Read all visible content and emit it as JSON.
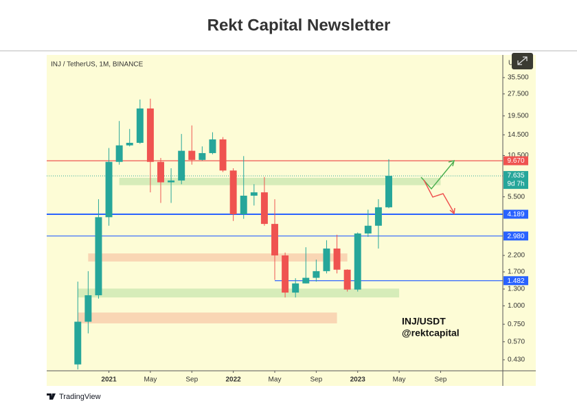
{
  "header": {
    "title": "Rekt Capital Newsletter"
  },
  "chart_data": {
    "type": "candlestick",
    "symbol_label": "INJ / TetherUS, 1M, BINANCE",
    "currency_label": "USDT",
    "watermark": [
      "INJ/USDT",
      "@rektcapital"
    ],
    "brand": "TradingView",
    "log_scale": true,
    "grid": false,
    "up_color": "#26a69a",
    "down_color": "#ef5350",
    "x": [
      "2020-10",
      "2020-11",
      "2020-12",
      "2021-01",
      "2021-02",
      "2021-03",
      "2021-04",
      "2021-05",
      "2021-06",
      "2021-07",
      "2021-08",
      "2021-09",
      "2021-10",
      "2021-11",
      "2021-12",
      "2022-01",
      "2022-02",
      "2022-03",
      "2022-04",
      "2022-05",
      "2022-06",
      "2022-07",
      "2022-08",
      "2022-09",
      "2022-10",
      "2022-11",
      "2022-12",
      "2023-01",
      "2023-02",
      "2023-03",
      "2023-04"
    ],
    "open": [
      0.4,
      0.78,
      1.18,
      4.0,
      9.5,
      12.3,
      12.8,
      21.9,
      9.5,
      6.9,
      7.1,
      11.3,
      9.8,
      10.9,
      13.5,
      8.3,
      4.19,
      5.6,
      5.9,
      3.6,
      2.2,
      1.23,
      1.42,
      1.55,
      1.72,
      2.45,
      1.76,
      1.29,
      3.1,
      3.5,
      4.67
    ],
    "high": [
      1.46,
      1.72,
      5.3,
      11.8,
      18.0,
      15.9,
      25.2,
      25.5,
      10.1,
      8.6,
      14.7,
      16.8,
      12.1,
      15.1,
      14.0,
      8.6,
      10.4,
      6.7,
      7.5,
      5.3,
      2.3,
      1.54,
      2.5,
      2.06,
      2.79,
      3.04,
      1.77,
      3.15,
      4.5,
      5.3,
      9.9
    ],
    "low": [
      0.37,
      0.65,
      1.12,
      3.5,
      9.1,
      12.1,
      12.6,
      5.9,
      5.0,
      5.0,
      6.7,
      9.1,
      9.7,
      10.7,
      8.1,
      3.77,
      3.9,
      4.8,
      3.5,
      1.5,
      1.14,
      1.14,
      1.42,
      1.46,
      1.66,
      1.66,
      1.25,
      1.25,
      2.94,
      2.45,
      4.6
    ],
    "close": [
      0.78,
      1.18,
      4.0,
      9.5,
      12.3,
      12.8,
      21.9,
      9.5,
      6.9,
      7.1,
      11.3,
      9.8,
      10.9,
      13.5,
      8.3,
      4.19,
      5.6,
      5.9,
      3.6,
      2.2,
      1.23,
      1.42,
      1.55,
      1.72,
      2.45,
      1.76,
      1.29,
      3.1,
      3.5,
      4.67,
      7.635
    ],
    "xlim": [
      "2020-07",
      "2024-03"
    ],
    "xticks": [
      {
        "value": "2021-01",
        "label": "2021"
      },
      {
        "value": "2021-05",
        "label": "May"
      },
      {
        "value": "2021-09",
        "label": "Sep"
      },
      {
        "value": "2022-01",
        "label": "2022"
      },
      {
        "value": "2022-05",
        "label": "May"
      },
      {
        "value": "2022-09",
        "label": "Sep"
      },
      {
        "value": "2023-01",
        "label": "2023"
      },
      {
        "value": "2023-05",
        "label": "May"
      },
      {
        "value": "2023-09",
        "label": "Sep"
      }
    ],
    "ylim": [
      0.362,
      50.6
    ],
    "yticks": [
      {
        "value": 35.5,
        "label": "35.500"
      },
      {
        "value": 27.5,
        "label": "27.500"
      },
      {
        "value": 19.5,
        "label": "19.500"
      },
      {
        "value": 14.5,
        "label": "14.500"
      },
      {
        "value": 10.5,
        "label": "10.500"
      },
      {
        "value": 5.5,
        "label": "5.500"
      },
      {
        "value": 2.2,
        "label": "2.200"
      },
      {
        "value": 1.7,
        "label": "1.700"
      },
      {
        "value": 1.3,
        "label": "1.300"
      },
      {
        "value": 1.0,
        "label": "1.000"
      },
      {
        "value": 0.75,
        "label": "0.750"
      },
      {
        "value": 0.57,
        "label": "0.570"
      },
      {
        "value": 0.43,
        "label": "0.430"
      }
    ],
    "levels": [
      {
        "value": 9.67,
        "label": "9.670",
        "color": "#ef5350"
      },
      {
        "value": 4.189,
        "label": "4.189",
        "color": "#2962ff"
      },
      {
        "value": 2.98,
        "label": "2.980",
        "color": "#2962ff"
      },
      {
        "value": 1.482,
        "label": "1.482",
        "color": "#2962ff",
        "start": "2022-05"
      }
    ],
    "last_price": {
      "value": 7.635,
      "countdown": "9d 7h",
      "color": "#26a69a"
    },
    "zones": [
      {
        "low": 6.6,
        "high": 7.4,
        "start": "2021-02",
        "end": "2023-09",
        "color": "#cfe9b4"
      },
      {
        "low": 2.0,
        "high": 2.27,
        "start": "2020-11",
        "end": "2022-12",
        "color": "#f8cfae"
      },
      {
        "low": 1.14,
        "high": 1.31,
        "start": "2020-10",
        "end": "2023-05",
        "color": "#cfe9b4"
      },
      {
        "low": 0.76,
        "high": 0.9,
        "start": "2020-10",
        "end": "2022-11",
        "color": "#f8cfae"
      }
    ]
  }
}
